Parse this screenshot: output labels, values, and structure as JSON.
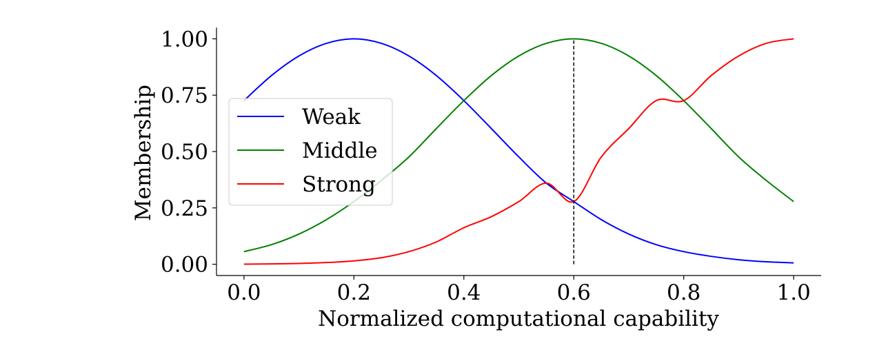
{
  "chart_data": {
    "type": "line",
    "xlabel": "Normalized computational capability",
    "ylabel": "Membership",
    "xlim": [
      -0.05,
      1.05
    ],
    "ylim": [
      -0.05,
      1.05
    ],
    "xticks": [
      0.0,
      0.2,
      0.4,
      0.6,
      0.8,
      1.0
    ],
    "xtick_labels": [
      "0.0",
      "0.2",
      "0.4",
      "0.6",
      "0.8",
      "1.0"
    ],
    "yticks": [
      0.0,
      0.25,
      0.5,
      0.75,
      1.0
    ],
    "ytick_labels": [
      "0.00",
      "0.25",
      "0.50",
      "0.75",
      "1.00"
    ],
    "grid": false,
    "legend_position": "center-left",
    "x": [
      0.0,
      0.05,
      0.1,
      0.15,
      0.2,
      0.25,
      0.3,
      0.35,
      0.4,
      0.45,
      0.5,
      0.55,
      0.6,
      0.65,
      0.7,
      0.75,
      0.8,
      0.85,
      0.9,
      0.95,
      1.0
    ],
    "series": [
      {
        "name": "Weak",
        "color": "#0000ff",
        "values": [
          0.726,
          0.837,
          0.924,
          0.98,
          1.0,
          0.98,
          0.924,
          0.837,
          0.726,
          0.602,
          0.476,
          0.36,
          0.278,
          0.198,
          0.134,
          0.087,
          0.056,
          0.035,
          0.02,
          0.011,
          0.006
        ]
      },
      {
        "name": "Middle",
        "color": "#008000",
        "values": [
          0.056,
          0.087,
          0.134,
          0.198,
          0.278,
          0.372,
          0.476,
          0.602,
          0.726,
          0.837,
          0.924,
          0.98,
          1.0,
          0.98,
          0.924,
          0.837,
          0.726,
          0.602,
          0.476,
          0.372,
          0.278
        ]
      },
      {
        "name": "Strong",
        "color": "#ff0000",
        "values": [
          0.0006,
          0.0016,
          0.0035,
          0.0075,
          0.015,
          0.029,
          0.056,
          0.099,
          0.162,
          0.211,
          0.278,
          0.36,
          0.278,
          0.476,
          0.602,
          0.726,
          0.726,
          0.837,
          0.924,
          0.98,
          1.0
        ]
      }
    ],
    "annotations": [
      {
        "type": "vline",
        "x": 0.6,
        "y_from": 0.0,
        "y_to": 1.0,
        "style": "dashed",
        "color": "#000000"
      }
    ]
  }
}
